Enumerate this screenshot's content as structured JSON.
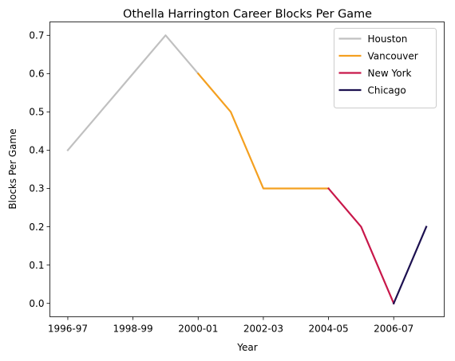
{
  "chart_data": {
    "type": "line",
    "title": "Othella Harrington Career Blocks Per Game",
    "xlabel": "Year",
    "ylabel": "Blocks Per Game",
    "x": [
      "1996-97",
      "1997-98",
      "1998-99",
      "1999-00",
      "2000-01",
      "2001-02",
      "2002-03",
      "2003-04",
      "2004-05",
      "2005-06",
      "2006-07",
      "2007-08"
    ],
    "x_tick_labels": [
      "1996-97",
      "1998-99",
      "2000-01",
      "2002-03",
      "2004-05",
      "2006-07"
    ],
    "y_ticks": [
      0.0,
      0.1,
      0.2,
      0.3,
      0.4,
      0.5,
      0.6,
      0.7
    ],
    "y_tick_labels": [
      "0.0",
      "0.1",
      "0.2",
      "0.3",
      "0.4",
      "0.5",
      "0.6",
      "0.7"
    ],
    "ylim": [
      -0.035,
      0.735
    ],
    "grid": false,
    "legend_position": "top-right",
    "series": [
      {
        "name": "Houston",
        "color": "#c0c0c0",
        "x": [
          "1996-97",
          "1997-98",
          "1998-99",
          "1999-00",
          "2000-01"
        ],
        "values": [
          0.4,
          0.5,
          0.6,
          0.7,
          0.6
        ]
      },
      {
        "name": "Vancouver",
        "color": "#f4a020",
        "x": [
          "2000-01",
          "2001-02",
          "2002-03",
          "2003-04",
          "2004-05"
        ],
        "values": [
          0.6,
          0.5,
          0.3,
          0.3,
          0.3
        ]
      },
      {
        "name": "New York",
        "color": "#c8174a",
        "x": [
          "2004-05",
          "2005-06",
          "2006-07"
        ],
        "values": [
          0.3,
          0.2,
          0.0
        ]
      },
      {
        "name": "Chicago",
        "color": "#1c1050",
        "x": [
          "2006-07",
          "2007-08"
        ],
        "values": [
          0.0,
          0.2
        ]
      }
    ]
  }
}
